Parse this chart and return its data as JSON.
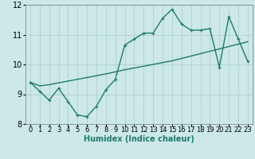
{
  "xlabel": "Humidex (Indice chaleur)",
  "x_data": [
    0,
    1,
    2,
    3,
    4,
    5,
    6,
    7,
    8,
    9,
    10,
    11,
    12,
    13,
    14,
    15,
    16,
    17,
    18,
    19,
    20,
    21,
    22,
    23
  ],
  "y_line": [
    9.4,
    9.1,
    8.8,
    9.2,
    8.75,
    8.3,
    8.25,
    8.6,
    9.15,
    9.5,
    10.65,
    10.85,
    11.05,
    11.05,
    11.55,
    11.85,
    11.35,
    11.15,
    11.15,
    11.2,
    9.9,
    11.6,
    10.85,
    10.1
  ],
  "y_trend": [
    9.4,
    9.28,
    9.32,
    9.38,
    9.44,
    9.5,
    9.56,
    9.62,
    9.68,
    9.75,
    9.82,
    9.88,
    9.94,
    10.0,
    10.06,
    10.12,
    10.2,
    10.28,
    10.36,
    10.44,
    10.52,
    10.6,
    10.68,
    10.76
  ],
  "line_color": "#1e7a6a",
  "bg_color": "#cce8e8",
  "grid_color": "#aacccc",
  "ylim": [
    8.0,
    12.0
  ],
  "xlim_min": -0.5,
  "xlim_max": 23.5,
  "yticks": [
    8,
    9,
    10,
    11,
    12
  ],
  "xticks": [
    0,
    1,
    2,
    3,
    4,
    5,
    6,
    7,
    8,
    9,
    10,
    11,
    12,
    13,
    14,
    15,
    16,
    17,
    18,
    19,
    20,
    21,
    22,
    23
  ],
  "xlabel_fontsize": 7,
  "tick_fontsize": 6,
  "line_width": 1.0,
  "marker_size": 3
}
